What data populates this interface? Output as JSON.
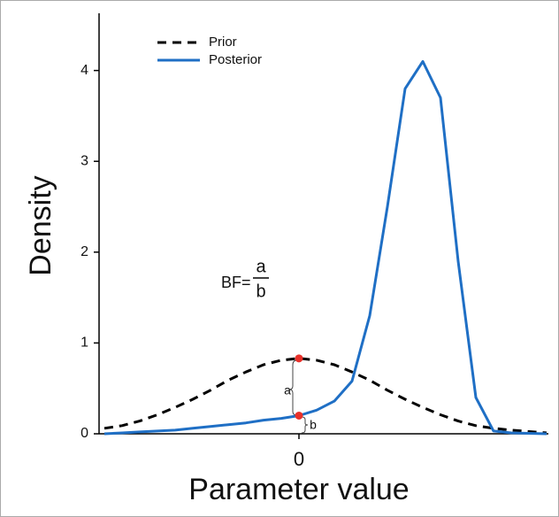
{
  "chart_data": {
    "type": "line",
    "x_label": "Parameter value",
    "y_label": "Density",
    "x": [
      -1.1,
      -1.0,
      -0.9,
      -0.8,
      -0.7,
      -0.6,
      -0.5,
      -0.4,
      -0.3,
      -0.2,
      -0.1,
      0,
      0.1,
      0.2,
      0.3,
      0.4,
      0.5,
      0.6,
      0.7,
      0.8,
      0.9,
      1.0,
      1.1,
      1.2,
      1.4
    ],
    "series": [
      {
        "name": "Prior",
        "color": "#000000",
        "dashed": true,
        "values": [
          0.06,
          0.09,
          0.14,
          0.21,
          0.29,
          0.38,
          0.48,
          0.59,
          0.68,
          0.76,
          0.81,
          0.83,
          0.81,
          0.76,
          0.68,
          0.59,
          0.48,
          0.38,
          0.29,
          0.21,
          0.14,
          0.09,
          0.06,
          0.04,
          0.01
        ]
      },
      {
        "name": "Posterior",
        "color": "#1f6fc5",
        "dashed": false,
        "values": [
          0,
          0.01,
          0.02,
          0.03,
          0.04,
          0.06,
          0.08,
          0.1,
          0.12,
          0.15,
          0.17,
          0.2,
          0.26,
          0.36,
          0.58,
          1.3,
          2.5,
          3.8,
          4.1,
          3.7,
          1.9,
          0.4,
          0.03,
          0.01,
          0
        ]
      }
    ],
    "xlim": [
      -1.13,
      1.41
    ],
    "xticks": [
      0
    ],
    "ylim": [
      0,
      4.63
    ],
    "yticks": [
      0,
      1,
      2,
      3,
      4
    ],
    "legend": "upper left",
    "bf_label": "BF=",
    "bf_numerator": "a",
    "bf_denominator": "b",
    "gap_labels": [
      "a",
      "b"
    ],
    "point_color": "#e8312a"
  }
}
